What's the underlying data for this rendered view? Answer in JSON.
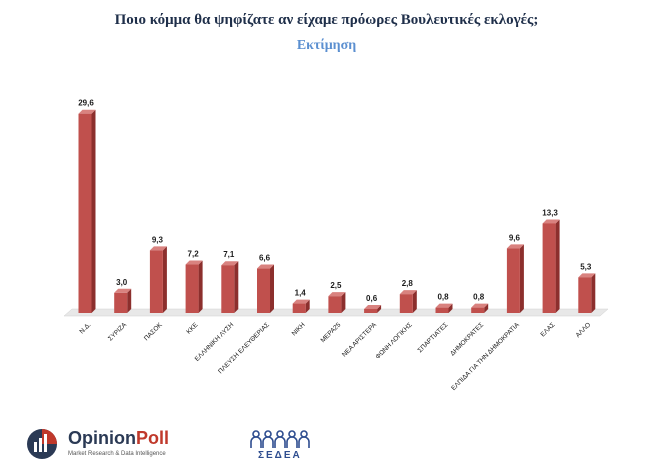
{
  "title": "Ποιο κόμμα θα ψηφίζατε αν είχαμε πρόωρες Βουλευτικές εκλογές;",
  "subtitle": "Εκτίμηση",
  "colors": {
    "title": "#1f2f4a",
    "subtitle": "#5b8fd0",
    "bar_front": "#c0504d",
    "bar_side": "#8c2f2d",
    "bar_top": "#d9827f",
    "floor": "#e8e8e8"
  },
  "logos": {
    "opinionpoll_name_a": "Opinion",
    "opinionpoll_name_b": "Poll",
    "opinionpoll_tagline": "Market Research & Data Intelligence",
    "sedea_name": "ΣΕΔΕΑ"
  },
  "chart_data": {
    "type": "bar",
    "title": "Ποιο κόμμα θα ψηφίζατε αν είχαμε πρόωρες Βουλευτικές εκλογές;",
    "subtitle": "Εκτίμηση",
    "categories": [
      "Ν.Δ.",
      "ΣΥΡΙΖΑ",
      "ΠΑΣΟΚ",
      "ΚΚΕ",
      "ΕΛΛΗΝΙΚΗ ΛΥΣΗ",
      "ΠΛΕΥΣΗ ΕΛΕΥΘΕΡΙΑΣ",
      "ΝΙΚΗ",
      "ΜΕΡΑ25",
      "ΝΕΑ ΑΡΙΣΤΕΡΑ",
      "ΦΩΝΗ ΛΟΓΙΚΗΣ",
      "ΣΠΑΡΤΙΑΤΕΣ",
      "ΔΗΜΟΚΡΑΤΕΣ",
      "ΕΛΠΙΔΑ ΓΙΑ ΤΗΝ ΔΗΜΟΚΡΑΤΙΑ",
      "ΕΛΑΣ",
      "ΑΛΛΟ"
    ],
    "values": [
      29.6,
      3.0,
      9.3,
      7.2,
      7.1,
      6.6,
      1.4,
      2.5,
      0.6,
      2.8,
      0.8,
      0.8,
      9.6,
      13.3,
      5.3
    ],
    "value_labels": [
      "29,6",
      "3,0",
      "9,3",
      "7,2",
      "7,1",
      "6,6",
      "1,4",
      "2,5",
      "0,6",
      "2,8",
      "0,8",
      "0,8",
      "9,6",
      "13,3",
      "5,3"
    ],
    "xlabel": "",
    "ylabel": "",
    "ylim": [
      0,
      30
    ],
    "grid": false,
    "legend": "none"
  }
}
